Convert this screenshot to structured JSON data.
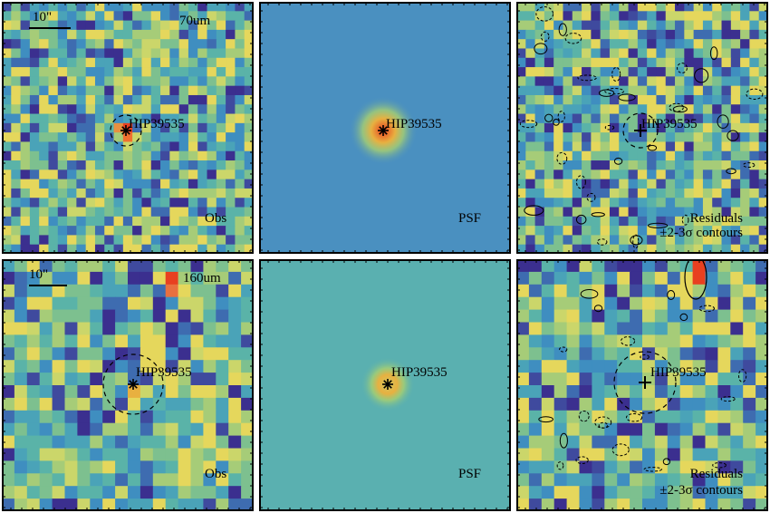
{
  "panels": {
    "obs70": {
      "band": "70um",
      "source": "HIP39535",
      "caption": "Obs",
      "scale": "10\""
    },
    "psf70": {
      "source": "HIP39535",
      "caption": "PSF"
    },
    "res70": {
      "source": "HIP39535",
      "caption_line1": "Residuals",
      "caption_line2": "±2-3σ contours"
    },
    "obs160": {
      "band": "160um",
      "source": "HIP39535",
      "caption": "Obs",
      "scale": "10\""
    },
    "psf160": {
      "source": "HIP39535",
      "caption": "PSF"
    },
    "res160": {
      "source": "HIP39535",
      "caption_line1": "Residuals",
      "caption_line2": "±2-3σ contours"
    }
  },
  "colors": {
    "frame": "#000000",
    "noise_mid": "#4aa3b8",
    "psf70_bg": "#4a90c0",
    "psf160_bg": "#5ab0b0",
    "peak": "#e84020"
  }
}
